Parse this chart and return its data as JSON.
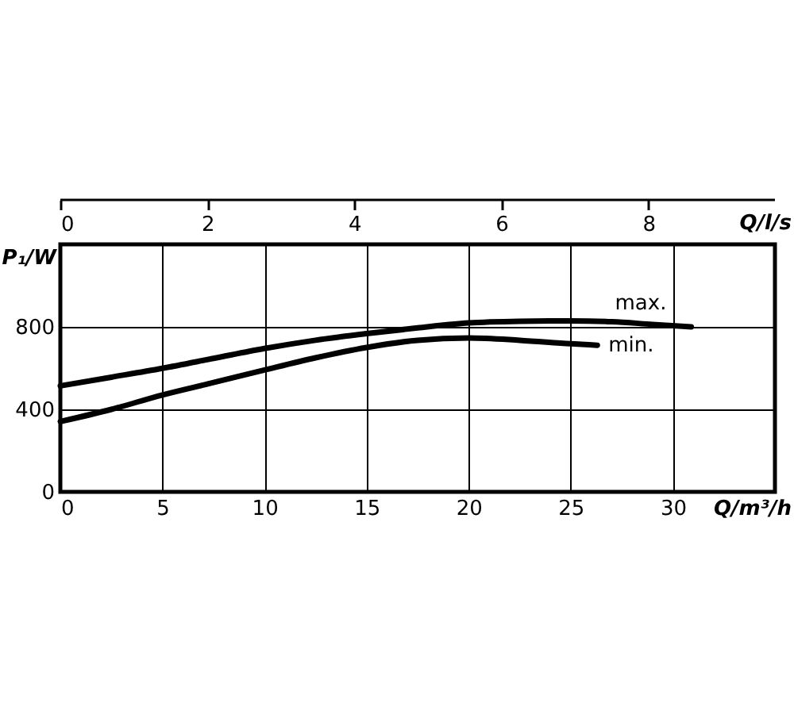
{
  "chart_data": {
    "type": "line",
    "xlabel": "Q/m³/h",
    "ylabel": "P₁/W",
    "x2label": "Q/l/s",
    "xlim": [
      0,
      35
    ],
    "xticks": [
      0,
      5,
      10,
      15,
      20,
      25,
      30
    ],
    "x2lim": [
      0,
      9.72
    ],
    "x2ticks": [
      0,
      2,
      4,
      6,
      8
    ],
    "ylim": [
      0,
      1200
    ],
    "yticks": [
      0,
      400,
      800
    ],
    "grid": true,
    "marker": "none",
    "line_style": "solid",
    "series": [
      {
        "name": "max.",
        "color": "#000000",
        "x": [
          0,
          2.5,
          5,
          7.5,
          10,
          12.5,
          15,
          17.5,
          20,
          22.5,
          25,
          27,
          29,
          30.9
        ],
        "values": [
          514,
          556,
          599,
          647,
          695,
          735,
          767,
          795,
          819,
          827,
          829,
          825,
          812,
          800
        ]
      },
      {
        "name": "min.",
        "color": "#000000",
        "x": [
          0,
          2.5,
          5,
          7.5,
          10,
          12.5,
          15,
          17.5,
          20,
          22.5,
          25,
          26.3
        ],
        "values": [
          341,
          400,
          470,
          530,
          591,
          650,
          700,
          735,
          746,
          735,
          718,
          711
        ]
      }
    ]
  }
}
